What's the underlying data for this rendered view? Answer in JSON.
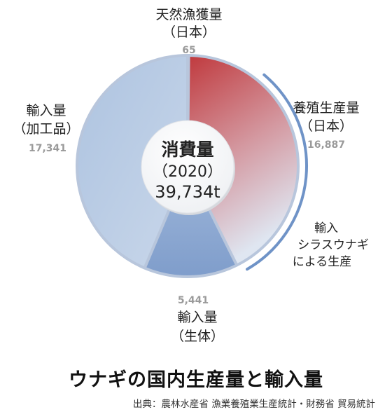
{
  "chart_data": {
    "type": "pie",
    "slices": [
      {
        "key": "natural",
        "label_lines": [
          "天然漁獲量",
          "（日本）"
        ],
        "value": 65,
        "value_label": "65",
        "color": "#e9eef6"
      },
      {
        "key": "farmed",
        "label_lines": [
          "養殖生産量",
          "（日本）"
        ],
        "value": 16887,
        "value_label": "16,887",
        "color": "#c0484c"
      },
      {
        "key": "import_live",
        "label_lines": [
          "輸入量",
          "（生体）"
        ],
        "value": 5441,
        "value_label": "5,441",
        "color": "#8aa6cf"
      },
      {
        "key": "import_proc",
        "label_lines": [
          "輸入量",
          "（加工品）"
        ],
        "value": 17341,
        "value_label": "17,341",
        "color": "#b8cbe3"
      }
    ],
    "center": {
      "title": "消費量",
      "year": "（2020）",
      "total": "39,734t"
    },
    "annotation_lines": [
      "輸入",
      "シラスウナギ",
      "による生産"
    ]
  },
  "title": "ウナギの国内生産量と輸入量",
  "source": "出典：農林水産省 漁業養殖業生産統計・財務省 貿易統計"
}
